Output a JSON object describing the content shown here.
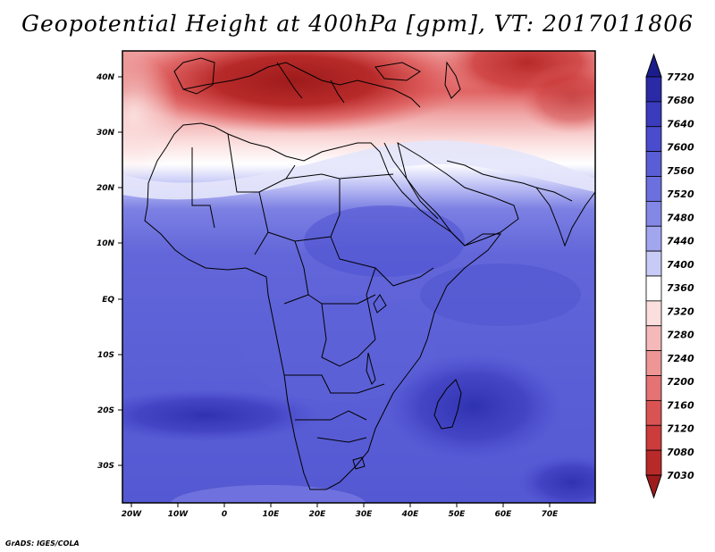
{
  "title": "Geopotential Height at 400hPa [gpm], VT: 2017011806",
  "credit": "GrADS: IGES/COLA",
  "axes": {
    "x_ticks": [
      "20W",
      "10W",
      "0",
      "10E",
      "20E",
      "30E",
      "40E",
      "50E",
      "60E",
      "70E"
    ],
    "y_ticks": [
      "40N",
      "30N",
      "20N",
      "10N",
      "EQ",
      "10S",
      "20S",
      "30S"
    ]
  },
  "colorbar": {
    "labels": [
      "7720",
      "7680",
      "7640",
      "7600",
      "7560",
      "7520",
      "7480",
      "7440",
      "7400",
      "7360",
      "7320",
      "7280",
      "7240",
      "7200",
      "7160",
      "7120",
      "7080",
      "7030"
    ],
    "colors": [
      "#1c1d8c",
      "#2a2aa6",
      "#3b3bbe",
      "#4a4ccd",
      "#5a5ed6",
      "#6c70de",
      "#8387e6",
      "#a2a6ef",
      "#c9cbf7",
      "#ffffff",
      "#fbdede",
      "#f5b9b9",
      "#ee9696",
      "#e57373",
      "#da5353",
      "#cc3c3c",
      "#b82a2a",
      "#9e1b1b"
    ]
  },
  "map": {
    "region": "Africa and Middle East",
    "lon_range": [
      -22,
      80
    ],
    "lat_range": [
      -37,
      45
    ],
    "variable": "Geopotential Height at 400hPa",
    "units": "gpm"
  }
}
